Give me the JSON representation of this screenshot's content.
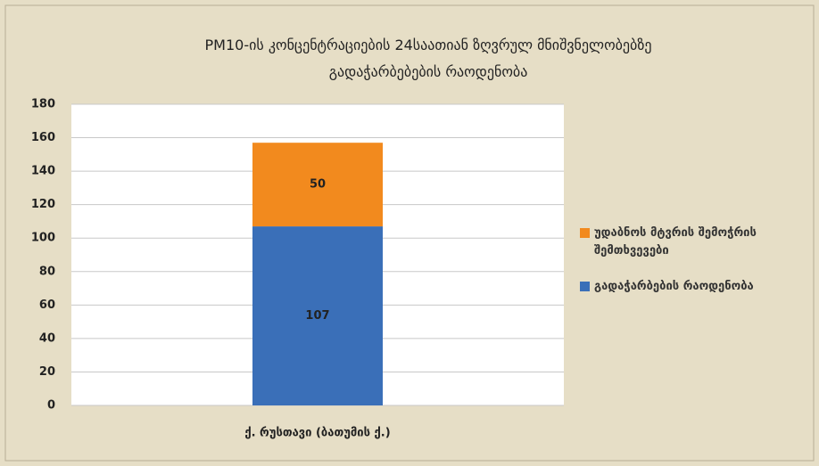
{
  "chart_data": {
    "type": "stacked_bar",
    "title": "PM10-ის კონცენტრაციების 24საათიან ზღვრულ მნიშვნელობებზე გადაჭარბებების რაოდენობა",
    "categories": [
      "ქ. რუსთავი (ბათუმის ქ.)"
    ],
    "series": [
      {
        "name": "გადაჭარბების რაოდენობა",
        "color": "#3a6fb8",
        "values": [
          107
        ]
      },
      {
        "name": "უდაბნოს მტვრის შემოჭრის შემთხვევები",
        "color": "#f28a1e",
        "values": [
          50
        ]
      }
    ],
    "ylim": [
      0,
      180
    ],
    "yticks": [
      0,
      20,
      40,
      60,
      80,
      100,
      120,
      140,
      160,
      180
    ],
    "grid": true,
    "legend": "right"
  }
}
